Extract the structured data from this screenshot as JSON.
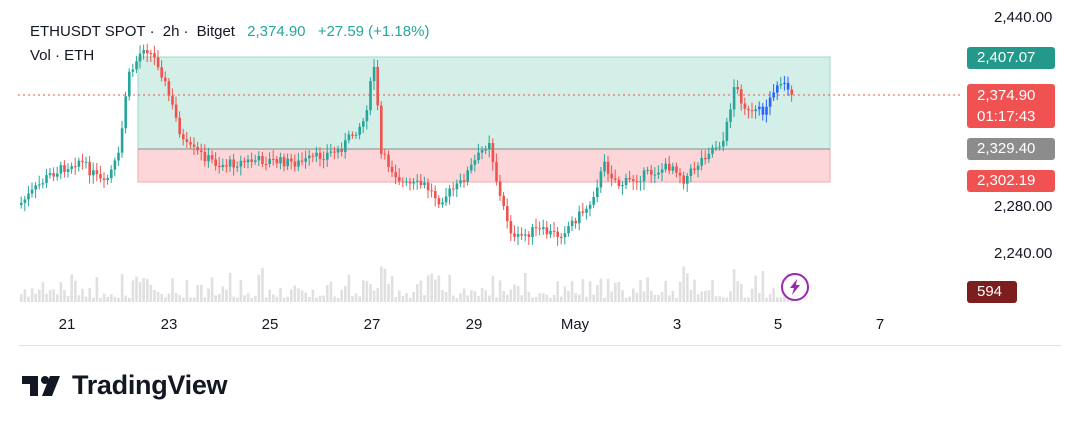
{
  "header": {
    "symbol": "ETHUSDT SPOT",
    "interval": "2h",
    "exchange": "Bitget",
    "last": "2,374.90",
    "change": "+27.59 (+1.18%)",
    "volume_label": "Vol · ETH"
  },
  "price_axis": {
    "labels": [
      "2,440.00",
      "2,280.00",
      "2,240.00"
    ]
  },
  "tags": {
    "zone_top": "2,407.07",
    "current_price": "2,374.90",
    "countdown": "01:17:43",
    "zone_mid": "2,329.40",
    "zone_bottom": "2,302.19",
    "volume": "594"
  },
  "time_axis": [
    "21",
    "23",
    "25",
    "27",
    "29",
    "May",
    "3",
    "5",
    "7"
  ],
  "brand": {
    "name": "TradingView"
  },
  "colors": {
    "up": "#26a69a",
    "down": "#ef5350",
    "highlight": "#2962ff",
    "zone_green": "#d3efe8",
    "zone_red": "#fcd6d8",
    "countdown_tag": "#f05252"
  },
  "icons": {
    "flash": "lightning-bolt-icon"
  }
}
